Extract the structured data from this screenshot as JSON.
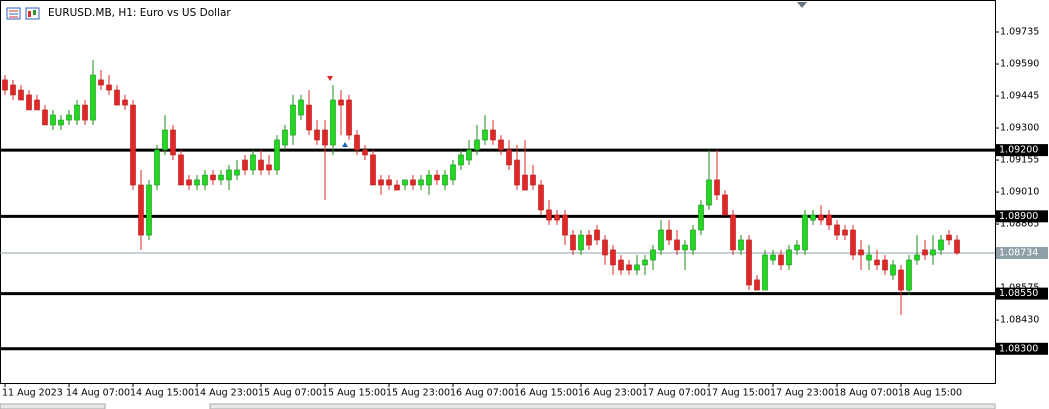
{
  "chart_data": {
    "type": "candlestick",
    "title": "EURUSD.MB, H1:  Euro vs US Dollar",
    "up_color": "#22d922",
    "down_color": "#e02828",
    "ylim": [
      1.08145,
      1.0988
    ],
    "yticks": [
      {
        "value": 1.09735,
        "label": "1.09735"
      },
      {
        "value": 1.0959,
        "label": "1.09590"
      },
      {
        "value": 1.09445,
        "label": "1.09445"
      },
      {
        "value": 1.093,
        "label": "1.09300"
      },
      {
        "value": 1.09155,
        "label": "1.09155"
      },
      {
        "value": 1.0901,
        "label": "1.09010"
      },
      {
        "value": 1.08865,
        "label": "1.08865"
      },
      {
        "value": 1.08575,
        "label": "1.08575"
      },
      {
        "value": 1.0843,
        "label": "1.08430"
      }
    ],
    "levels": [
      {
        "value": 1.092,
        "label": "1.09200"
      },
      {
        "value": 1.089,
        "label": "1.08900"
      },
      {
        "value": 1.0855,
        "label": "1.08550"
      },
      {
        "value": 1.083,
        "label": "1.08300"
      }
    ],
    "current_price": {
      "value": 1.08734,
      "label": "1.08734"
    },
    "categories": [
      "11 Aug 2023",
      null,
      null,
      null,
      null,
      null,
      null,
      null,
      "14 Aug 07:00",
      null,
      null,
      null,
      null,
      null,
      null,
      null,
      "14 Aug 15:00",
      null,
      null,
      null,
      null,
      null,
      null,
      null,
      "14 Aug 23:00",
      null,
      null,
      null,
      null,
      null,
      null,
      null,
      "15 Aug 07:00",
      null,
      null,
      null,
      null,
      null,
      null,
      null,
      "15 Aug 15:00",
      null,
      null,
      null,
      null,
      null,
      null,
      null,
      "15 Aug 23:00",
      null,
      null,
      null,
      null,
      null,
      null,
      null,
      "16 Aug 07:00",
      null,
      null,
      null,
      null,
      null,
      null,
      null,
      "16 Aug 15:00",
      null,
      null,
      null,
      null,
      null,
      null,
      null,
      "16 Aug 23:00",
      null,
      null,
      null,
      null,
      null,
      null,
      null,
      "17 Aug 07:00",
      null,
      null,
      null,
      null,
      null,
      null,
      null,
      "17 Aug 15:00",
      null,
      null,
      null,
      null,
      null,
      null,
      null,
      "17 Aug 23:00",
      null,
      null,
      null,
      null,
      null,
      null,
      null,
      "18 Aug 07:00",
      null,
      null,
      null,
      null,
      null,
      null,
      null,
      "18 Aug 15:00",
      null,
      null,
      null,
      null,
      null,
      null,
      null
    ],
    "ohlc": [
      [
        1.09518,
        1.0954,
        1.0945,
        1.09472
      ],
      [
        1.09495,
        1.09518,
        1.09427,
        1.0945
      ],
      [
        1.09472,
        1.09495,
        1.09427,
        1.09427
      ],
      [
        1.0945,
        1.09472,
        1.09382,
        1.09382
      ],
      [
        1.09427,
        1.0945,
        1.09382,
        1.09382
      ],
      [
        1.09382,
        1.09404,
        1.09314,
        1.09314
      ],
      [
        1.09314,
        1.09382,
        1.09291,
        1.09359
      ],
      [
        1.09314,
        1.09359,
        1.09291,
        1.09336
      ],
      [
        1.09336,
        1.09382,
        1.09314,
        1.09359
      ],
      [
        1.09336,
        1.09427,
        1.09314,
        1.09404
      ],
      [
        1.09404,
        1.09427,
        1.09314,
        1.09336
      ],
      [
        1.09336,
        1.09608,
        1.09314,
        1.0954
      ],
      [
        1.09518,
        1.09563,
        1.09472,
        1.09495
      ],
      [
        1.09495,
        1.0954,
        1.0945,
        1.09472
      ],
      [
        1.09472,
        1.09495,
        1.09404,
        1.09404
      ],
      [
        1.09427,
        1.0945,
        1.09382,
        1.09404
      ],
      [
        1.09404,
        1.09427,
        1.09019,
        1.09042
      ],
      [
        1.09042,
        1.0911,
        1.08748,
        1.08815
      ],
      [
        1.08815,
        1.09065,
        1.08793,
        1.09042
      ],
      [
        1.09042,
        1.09223,
        1.09019,
        1.09201
      ],
      [
        1.09201,
        1.09359,
        1.09178,
        1.09291
      ],
      [
        1.09291,
        1.09314,
        1.09155,
        1.09178
      ],
      [
        1.09178,
        1.09201,
        1.09042,
        1.09042
      ],
      [
        1.09065,
        1.09087,
        1.09019,
        1.09042
      ],
      [
        1.09042,
        1.09087,
        1.09019,
        1.09065
      ],
      [
        1.09042,
        1.0911,
        1.09019,
        1.09087
      ],
      [
        1.09087,
        1.0911,
        1.09042,
        1.09065
      ],
      [
        1.09065,
        1.0911,
        1.09042,
        1.09087
      ],
      [
        1.09065,
        1.09133,
        1.09019,
        1.0911
      ],
      [
        1.09087,
        1.09155,
        1.09065,
        1.0911
      ],
      [
        1.09155,
        1.09178,
        1.09087,
        1.0911
      ],
      [
        1.0911,
        1.09201,
        1.09087,
        1.09178
      ],
      [
        1.09155,
        1.09201,
        1.09087,
        1.0911
      ],
      [
        1.09133,
        1.09178,
        1.09087,
        1.0911
      ],
      [
        1.0911,
        1.09268,
        1.09087,
        1.09246
      ],
      [
        1.09223,
        1.09314,
        1.09201,
        1.09291
      ],
      [
        1.09268,
        1.0945,
        1.09223,
        1.09404
      ],
      [
        1.09359,
        1.0945,
        1.09336,
        1.09427
      ],
      [
        1.09404,
        1.09472,
        1.09268,
        1.09291
      ],
      [
        1.09291,
        1.09336,
        1.09223,
        1.09246
      ],
      [
        1.09291,
        1.09336,
        1.08974,
        1.09223
      ],
      [
        1.09223,
        1.09495,
        1.09178,
        1.09427
      ],
      [
        1.09427,
        1.09472,
        1.09268,
        1.09404
      ],
      [
        1.09427,
        1.0945,
        1.09246,
        1.09268
      ],
      [
        1.09268,
        1.09291,
        1.09178,
        1.09201
      ],
      [
        1.09201,
        1.09223,
        1.09155,
        1.09178
      ],
      [
        1.09178,
        1.09201,
        1.09042,
        1.09042
      ],
      [
        1.09065,
        1.09087,
        1.08997,
        1.09042
      ],
      [
        1.09065,
        1.09087,
        1.09019,
        1.09042
      ],
      [
        1.09042,
        1.09065,
        1.09019,
        1.09019
      ],
      [
        1.09042,
        1.09065,
        1.09019,
        1.09065
      ],
      [
        1.09065,
        1.09087,
        1.09019,
        1.09042
      ],
      [
        1.09042,
        1.09087,
        1.09019,
        1.09065
      ],
      [
        1.09042,
        1.0911,
        1.08997,
        1.09087
      ],
      [
        1.09087,
        1.0911,
        1.09042,
        1.09065
      ],
      [
        1.09042,
        1.0911,
        1.09019,
        1.09087
      ],
      [
        1.09065,
        1.09155,
        1.09042,
        1.09133
      ],
      [
        1.09133,
        1.09201,
        1.0911,
        1.09178
      ],
      [
        1.09155,
        1.09246,
        1.09133,
        1.09201
      ],
      [
        1.09201,
        1.09314,
        1.09178,
        1.09246
      ],
      [
        1.09246,
        1.09359,
        1.09223,
        1.09291
      ],
      [
        1.09291,
        1.09336,
        1.09223,
        1.09246
      ],
      [
        1.09246,
        1.09268,
        1.09178,
        1.09201
      ],
      [
        1.09201,
        1.09246,
        1.0911,
        1.09133
      ],
      [
        1.09155,
        1.09223,
        1.09019,
        1.09042
      ],
      [
        1.09087,
        1.09246,
        1.09019,
        1.09019
      ],
      [
        1.09087,
        1.09133,
        1.09019,
        1.09042
      ],
      [
        1.09042,
        1.09065,
        1.08906,
        1.08929
      ],
      [
        1.08929,
        1.08974,
        1.08861,
        1.08883
      ],
      [
        1.08906,
        1.08929,
        1.08861,
        1.08883
      ],
      [
        1.08906,
        1.08929,
        1.0877,
        1.08815
      ],
      [
        1.08815,
        1.08838,
        1.08725,
        1.08748
      ],
      [
        1.08748,
        1.08838,
        1.08725,
        1.08815
      ],
      [
        1.08815,
        1.08838,
        1.08748,
        1.0877
      ],
      [
        1.08838,
        1.08861,
        1.0877,
        1.08793
      ],
      [
        1.08793,
        1.08815,
        1.0868,
        1.08725
      ],
      [
        1.08748,
        1.0877,
        1.08634,
        1.0868
      ],
      [
        1.08702,
        1.08725,
        1.08634,
        1.08657
      ],
      [
        1.0868,
        1.08702,
        1.08634,
        1.08657
      ],
      [
        1.08657,
        1.08725,
        1.08634,
        1.0868
      ],
      [
        1.0868,
        1.08725,
        1.08634,
        1.08702
      ],
      [
        1.08702,
        1.0877,
        1.08657,
        1.08748
      ],
      [
        1.08748,
        1.08883,
        1.08725,
        1.08838
      ],
      [
        1.08838,
        1.08883,
        1.0877,
        1.08793
      ],
      [
        1.08793,
        1.08838,
        1.08725,
        1.08748
      ],
      [
        1.08748,
        1.08793,
        1.08657,
        1.0877
      ],
      [
        1.08748,
        1.08861,
        1.08725,
        1.08838
      ],
      [
        1.08838,
        1.08974,
        1.08815,
        1.08951
      ],
      [
        1.08951,
        1.09201,
        1.08929,
        1.09065
      ],
      [
        1.09065,
        1.09201,
        1.08974,
        1.08997
      ],
      [
        1.08997,
        1.09019,
        1.08906,
        1.08906
      ],
      [
        1.08906,
        1.08929,
        1.08725,
        1.08748
      ],
      [
        1.08748,
        1.08815,
        1.08725,
        1.08793
      ],
      [
        1.08793,
        1.08815,
        1.08566,
        1.08589
      ],
      [
        1.08612,
        1.08634,
        1.08566,
        1.08566
      ],
      [
        1.08566,
        1.08748,
        1.08566,
        1.08725
      ],
      [
        1.08702,
        1.08748,
        1.0868,
        1.08725
      ],
      [
        1.08725,
        1.08748,
        1.08657,
        1.0868
      ],
      [
        1.0868,
        1.0877,
        1.08657,
        1.08748
      ],
      [
        1.08748,
        1.08793,
        1.08725,
        1.0877
      ],
      [
        1.08748,
        1.08929,
        1.08725,
        1.08906
      ],
      [
        1.08883,
        1.08929,
        1.08861,
        1.08906
      ],
      [
        1.08906,
        1.08951,
        1.08861,
        1.08883
      ],
      [
        1.08906,
        1.08929,
        1.08838,
        1.08861
      ],
      [
        1.08861,
        1.08883,
        1.08793,
        1.08815
      ],
      [
        1.08838,
        1.08861,
        1.08793,
        1.08815
      ],
      [
        1.08838,
        1.08861,
        1.08702,
        1.08725
      ],
      [
        1.08748,
        1.08793,
        1.08657,
        1.08725
      ],
      [
        1.08702,
        1.0877,
        1.08657,
        1.08725
      ],
      [
        1.08702,
        1.08748,
        1.08657,
        1.0868
      ],
      [
        1.08702,
        1.08725,
        1.08634,
        1.08657
      ],
      [
        1.08634,
        1.08702,
        1.08612,
        1.0868
      ],
      [
        1.08657,
        1.0868,
        1.08453,
        1.08566
      ],
      [
        1.08566,
        1.08725,
        1.08544,
        1.08702
      ],
      [
        1.08702,
        1.08815,
        1.0868,
        1.08725
      ],
      [
        1.08748,
        1.08793,
        1.08702,
        1.08725
      ],
      [
        1.08725,
        1.08815,
        1.0868,
        1.08748
      ],
      [
        1.08748,
        1.08815,
        1.08725,
        1.08793
      ],
      [
        1.08815,
        1.08838,
        1.0877,
        1.08793
      ],
      [
        1.08793,
        1.08815,
        1.08725,
        1.08734
      ]
    ]
  }
}
